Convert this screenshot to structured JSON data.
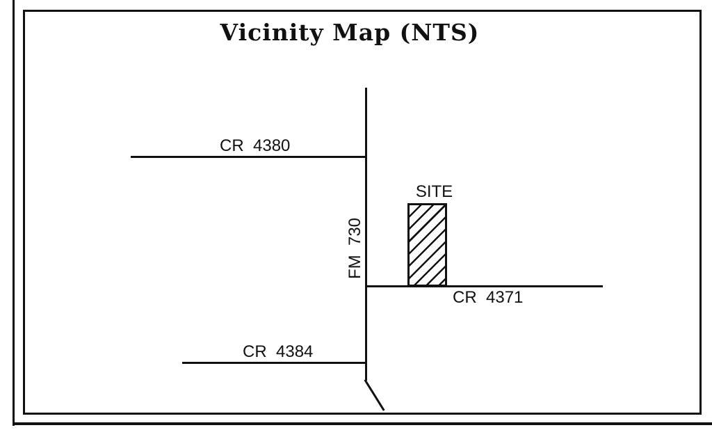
{
  "title": "Vicinity Map (NTS)",
  "site": {
    "label": "SITE"
  },
  "roads": {
    "cr4380": {
      "label": "CR  4380"
    },
    "fm730": {
      "label": "FM  730"
    },
    "cr4371": {
      "label": "CR  4371"
    },
    "cr4384": {
      "label": "CR  4384"
    }
  },
  "colors": {
    "ink": "#111111",
    "paper": "#ffffff"
  }
}
